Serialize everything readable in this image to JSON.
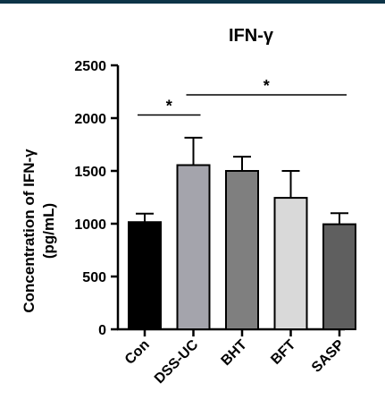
{
  "top_bar_color": "#0d3447",
  "chart_data": {
    "type": "bar",
    "title": "IFN-γ",
    "ylabel_line1": "Concentration of IFN-γ",
    "ylabel_line2": "(pg/mL)",
    "xlabel": "",
    "ylim": [
      0,
      2500
    ],
    "yticks": [
      {
        "value": 0,
        "label": "0"
      },
      {
        "value": 500,
        "label": "500"
      },
      {
        "value": 1000,
        "label": "1000"
      },
      {
        "value": 1500,
        "label": "1500"
      },
      {
        "value": 2000,
        "label": "2000"
      },
      {
        "value": 2500,
        "label": "2500"
      }
    ],
    "grid": false,
    "categories": [
      "Con",
      "DSS-UC",
      "BHT",
      "BFT",
      "SASP"
    ],
    "values": [
      1015,
      1555,
      1500,
      1245,
      995
    ],
    "errors": [
      80,
      260,
      135,
      255,
      105
    ],
    "colors": [
      "#000000",
      "#a4a4ac",
      "#7f7f7f",
      "#d9d9d9",
      "#5f5f5f"
    ],
    "significance": [
      {
        "from": 0,
        "to": 1,
        "label": "*",
        "y": 2030
      },
      {
        "from": 1,
        "to": 4,
        "label": "*",
        "y": 2220
      }
    ]
  }
}
